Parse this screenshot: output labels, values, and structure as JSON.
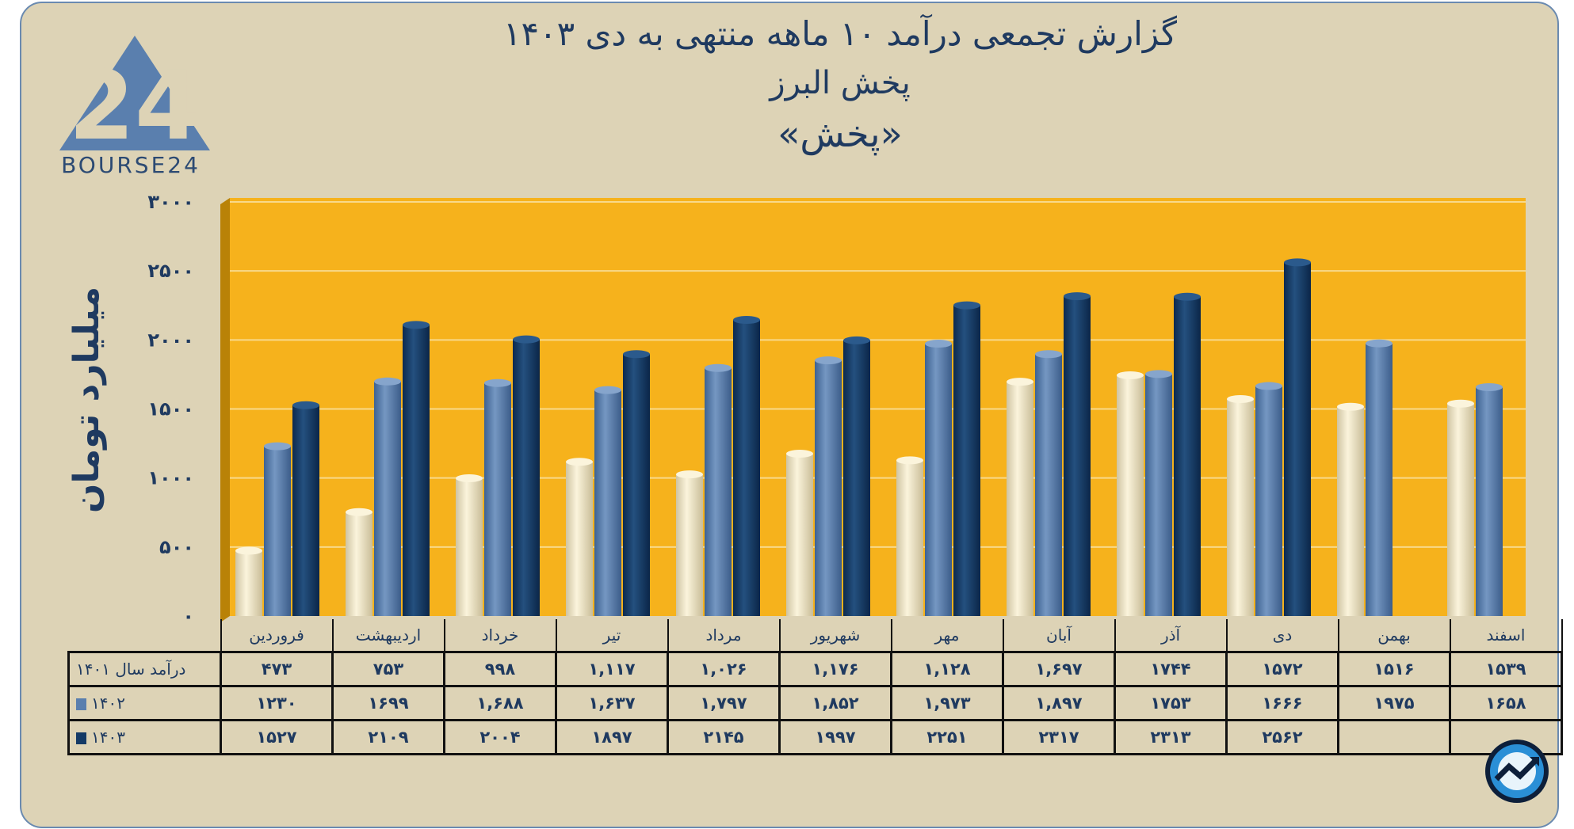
{
  "header": {
    "title_line1": "گزارش تجمعی درآمد ۱۰ ماهه منتهی به دی ۱۴۰۳",
    "title_line2": "پخش البرز",
    "title_line3": "«پخش»"
  },
  "logo": {
    "text": "BOURSE24",
    "mark": "24"
  },
  "colors": {
    "plot_bg": "#f6b21c",
    "s1401": "#efe5c6",
    "s1402": "#5a7fae",
    "s1403": "#143a66",
    "frame_bg": "#ddd3b6",
    "text": "#1f3a60"
  },
  "chart_data": {
    "type": "bar",
    "title": "گزارش تجمعی درآمد ۱۰ ماهه منتهی به دی ۱۴۰۳",
    "ylabel": "میلیارد تومان",
    "ylim": [
      0,
      3000
    ],
    "yticks": [
      0,
      500,
      1000,
      1500,
      2000,
      2500,
      3000
    ],
    "ytick_labels": [
      "۰",
      "۵۰۰",
      "۱۰۰۰",
      "۱۵۰۰",
      "۲۰۰۰",
      "۲۵۰۰",
      "۳۰۰۰"
    ],
    "grid": true,
    "categories": [
      "فروردین",
      "اردیبهشت",
      "خرداد",
      "تیر",
      "مرداد",
      "شهریور",
      "مهر",
      "آبان",
      "آذر",
      "دی",
      "بهمن",
      "اسفند"
    ],
    "series": [
      {
        "name": "1401",
        "values": [
          473,
          753,
          998,
          1117,
          1026,
          1176,
          1128,
          1697,
          1744,
          1572,
          1516,
          1539
        ]
      },
      {
        "name": "1402",
        "values": [
          1230,
          1699,
          1688,
          1637,
          1797,
          1852,
          1973,
          1897,
          1753,
          1666,
          1975,
          1658
        ]
      },
      {
        "name": "1403",
        "values": [
          1527,
          2109,
          2004,
          1897,
          2145,
          1997,
          2251,
          2317,
          2313,
          2562,
          null,
          null
        ]
      }
    ]
  },
  "table": {
    "rows": [
      {
        "label": "درآمد  سال ۱۴۰۱",
        "cells": [
          "۴۷۳",
          "۷۵۳",
          "۹۹۸",
          "۱,۱۱۷",
          "۱,۰۲۶",
          "۱,۱۷۶",
          "۱,۱۲۸",
          "۱,۶۹۷",
          "۱۷۴۴",
          "۱۵۷۲",
          "۱۵۱۶",
          "۱۵۳۹"
        ]
      },
      {
        "label": "۱۴۰۲",
        "cells": [
          "۱۲۳۰",
          "۱۶۹۹",
          "۱,۶۸۸",
          "۱,۶۳۷",
          "۱,۷۹۷",
          "۱,۸۵۲",
          "۱,۹۷۳",
          "۱,۸۹۷",
          "۱۷۵۳",
          "۱۶۶۶",
          "۱۹۷۵",
          "۱۶۵۸"
        ]
      },
      {
        "label": "۱۴۰۳",
        "cells": [
          "۱۵۲۷",
          "۲۱۰۹",
          "۲۰۰۴",
          "۱۸۹۷",
          "۲۱۴۵",
          "۱۹۹۷",
          "۲۲۵۱",
          "۲۳۱۷",
          "۲۳۱۳",
          "۲۵۶۲",
          "",
          ""
        ]
      }
    ]
  }
}
